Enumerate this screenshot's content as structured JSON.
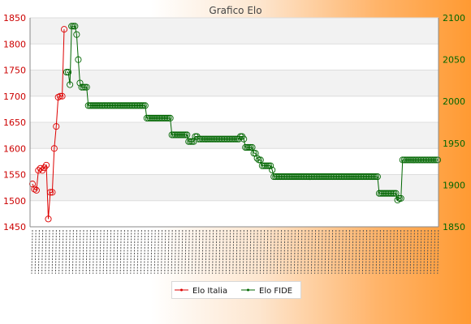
{
  "chart_data": {
    "type": "line",
    "title": "Grafico Elo",
    "grid": true,
    "legend_position": "bottom-center",
    "y_left": {
      "ticks": [
        1450,
        1500,
        1550,
        1600,
        1650,
        1700,
        1750,
        1800,
        1850
      ],
      "range": [
        1450,
        1850
      ],
      "color": "#cc0000"
    },
    "y_right": {
      "ticks": [
        1850,
        1900,
        1950,
        2000,
        2050,
        2100
      ],
      "range": [
        1850,
        2100
      ],
      "color": "#006600"
    },
    "x_tick_note": "x-axis tick labels are densely overlapped rotated dates and are illegible",
    "series": [
      {
        "name": "Elo Italia",
        "axis": "left",
        "color": "#dd0000",
        "values": [
          1532,
          1522,
          1520,
          1558,
          1562,
          1558,
          1563,
          1568,
          1465,
          1516,
          1516,
          1600,
          1642,
          1698,
          1700,
          1700,
          1828
        ]
      },
      {
        "name": "Elo FIDE",
        "axis": "right",
        "color": "#006600",
        "values": [
          2035,
          2035,
          2020,
          2090,
          2090,
          2090,
          2080,
          2050,
          2022,
          2017,
          2017,
          2017,
          2017,
          1995,
          1995,
          1995,
          1995,
          1995,
          1995,
          1995,
          1995,
          1995,
          1995,
          1995,
          1995,
          1995,
          1995,
          1995,
          1995,
          1995,
          1995,
          1995,
          1995,
          1995,
          1995,
          1995,
          1995,
          1995,
          1995,
          1995,
          1995,
          1995,
          1995,
          1995,
          1995,
          1995,
          1995,
          1995,
          1980,
          1980,
          1980,
          1980,
          1980,
          1980,
          1980,
          1980,
          1980,
          1980,
          1980,
          1980,
          1980,
          1980,
          1980,
          1960,
          1960,
          1960,
          1960,
          1960,
          1960,
          1960,
          1960,
          1960,
          1960,
          1952,
          1952,
          1952,
          1952,
          1958,
          1958,
          1955,
          1955,
          1955,
          1955,
          1955,
          1955,
          1955,
          1955,
          1955,
          1955,
          1955,
          1955,
          1955,
          1955,
          1955,
          1955,
          1955,
          1955,
          1955,
          1955,
          1955,
          1955,
          1955,
          1955,
          1955,
          1958,
          1958,
          1955,
          1945,
          1945,
          1945,
          1945,
          1945,
          1938,
          1938,
          1932,
          1930,
          1930,
          1923,
          1923,
          1923,
          1923,
          1923,
          1923,
          1918,
          1910,
          1910,
          1910,
          1910,
          1910,
          1910,
          1910,
          1910,
          1910,
          1910,
          1910,
          1910,
          1910,
          1910,
          1910,
          1910,
          1910,
          1910,
          1910,
          1910,
          1910,
          1910,
          1910,
          1910,
          1910,
          1910,
          1910,
          1910,
          1910,
          1910,
          1910,
          1910,
          1910,
          1910,
          1910,
          1910,
          1910,
          1910,
          1910,
          1910,
          1910,
          1910,
          1910,
          1910,
          1910,
          1910,
          1910,
          1910,
          1910,
          1910,
          1910,
          1910,
          1910,
          1910,
          1910,
          1910,
          1910,
          1910,
          1910,
          1910,
          1910,
          1910,
          1910,
          1890,
          1890,
          1890,
          1890,
          1890,
          1890,
          1890,
          1890,
          1890,
          1890,
          1890,
          1882,
          1884,
          1884,
          1930,
          1930,
          1930,
          1930,
          1930,
          1930,
          1930,
          1930,
          1930,
          1930,
          1930,
          1930,
          1930,
          1930,
          1930,
          1930,
          1930,
          1930,
          1930,
          1930,
          1930,
          1930
        ]
      }
    ]
  }
}
